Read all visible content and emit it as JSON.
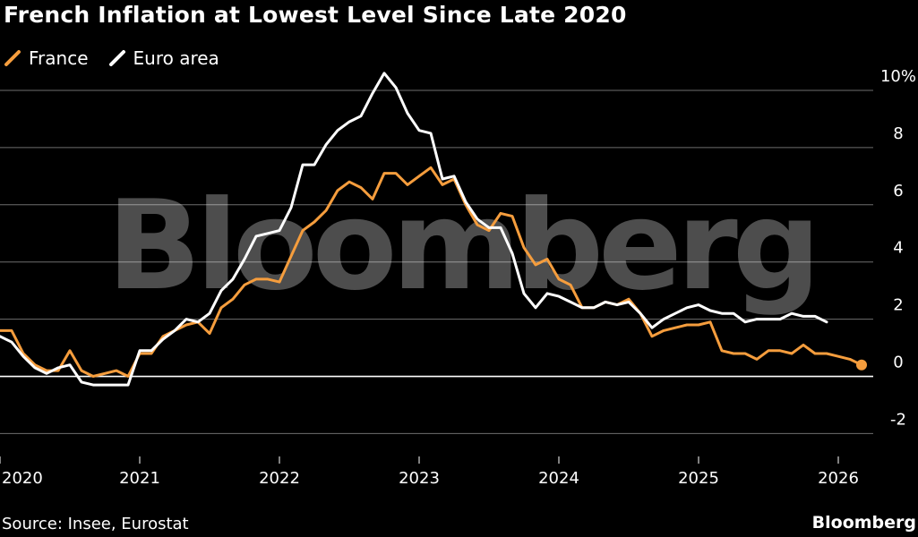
{
  "header": {
    "title": "French Inflation at Lowest Level Since Late 2020"
  },
  "footer": {
    "source": "Source: Insee, Eurostat",
    "brand": "Bloomberg"
  },
  "watermark": "Bloomberg",
  "colors": {
    "background": "#000000",
    "france": "#f59d3d",
    "euro_area": "#ffffff",
    "grid": "#6e6e6e",
    "zero_line": "#ffffff",
    "text": "#ffffff"
  },
  "chart_data": {
    "type": "line",
    "title": "French Inflation at Lowest Level Since Late 2020",
    "xlabel": "",
    "ylabel": "",
    "ylim": [
      -2.8,
      10.5
    ],
    "yticks": [
      10,
      8,
      6,
      4,
      2,
      0,
      -2
    ],
    "ytick_labels": [
      "10%",
      "8",
      "6",
      "4",
      "2",
      "0",
      "-2"
    ],
    "xlim": [
      2020.0,
      2026.25
    ],
    "xticks": [
      2020,
      2021,
      2022,
      2023,
      2024,
      2025,
      2026
    ],
    "xtick_labels": [
      "2020",
      "2021",
      "2022",
      "2023",
      "2024",
      "2025",
      "2026"
    ],
    "grid": true,
    "legend_position": "top-left",
    "series": [
      {
        "name": "France",
        "color": "#f59d3d",
        "start": "2020-01",
        "frequency": "monthly",
        "end_marker": true,
        "values": [
          1.6,
          1.6,
          0.8,
          0.4,
          0.2,
          0.2,
          0.9,
          0.2,
          0.0,
          0.1,
          0.2,
          0.0,
          0.8,
          0.8,
          1.4,
          1.6,
          1.8,
          1.9,
          1.5,
          2.4,
          2.7,
          3.2,
          3.4,
          3.4,
          3.3,
          4.2,
          5.1,
          5.4,
          5.8,
          6.5,
          6.8,
          6.6,
          6.2,
          7.1,
          7.1,
          6.7,
          7.0,
          7.3,
          6.7,
          6.9,
          6.0,
          5.3,
          5.1,
          5.7,
          5.6,
          4.5,
          3.9,
          4.1,
          3.4,
          3.2,
          2.4,
          2.4,
          2.6,
          2.5,
          2.7,
          2.2,
          1.4,
          1.6,
          1.7,
          1.8,
          1.8,
          1.9,
          0.9,
          0.8,
          0.8,
          0.6,
          0.9,
          0.9,
          0.8,
          1.1,
          0.8,
          0.8,
          0.7,
          0.6,
          0.4
        ]
      },
      {
        "name": "Euro area",
        "color": "#ffffff",
        "start": "2020-01",
        "frequency": "monthly",
        "end_marker": false,
        "values": [
          1.4,
          1.2,
          0.7,
          0.3,
          0.1,
          0.3,
          0.4,
          -0.2,
          -0.3,
          -0.3,
          -0.3,
          -0.3,
          0.9,
          0.9,
          1.3,
          1.6,
          2.0,
          1.9,
          2.2,
          3.0,
          3.4,
          4.1,
          4.9,
          5.0,
          5.1,
          5.9,
          7.4,
          7.4,
          8.1,
          8.6,
          8.9,
          9.1,
          9.9,
          10.6,
          10.1,
          9.2,
          8.6,
          8.5,
          6.9,
          7.0,
          6.1,
          5.5,
          5.2,
          5.2,
          4.3,
          2.9,
          2.4,
          2.9,
          2.8,
          2.6,
          2.4,
          2.4,
          2.6,
          2.5,
          2.6,
          2.2,
          1.7,
          2.0,
          2.2,
          2.4,
          2.5,
          2.3,
          2.2,
          2.2,
          1.9,
          2.0,
          2.0,
          2.0,
          2.2,
          2.1,
          2.1,
          1.9
        ]
      }
    ]
  }
}
